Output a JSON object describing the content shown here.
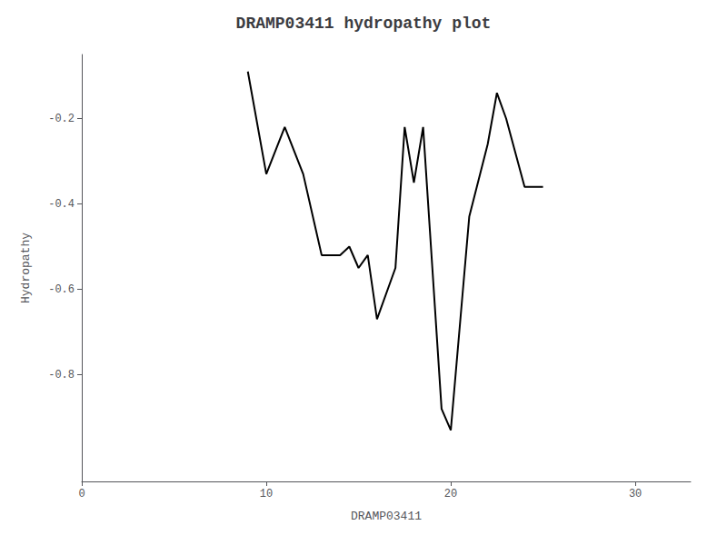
{
  "chart_data": {
    "type": "line",
    "title": "DRAMP03411 hydropathy plot",
    "xlabel": "DRAMP03411",
    "ylabel": "Hydropathy",
    "x": [
      9,
      10,
      11,
      12,
      13,
      14,
      14.5,
      15,
      15.5,
      16,
      17,
      17.5,
      18,
      18.5,
      19,
      19.5,
      20,
      21,
      22,
      22.5,
      23,
      24,
      25
    ],
    "values": [
      -0.09,
      -0.33,
      -0.22,
      -0.33,
      -0.52,
      -0.52,
      -0.5,
      -0.55,
      -0.52,
      -0.67,
      -0.55,
      -0.22,
      -0.35,
      -0.22,
      -0.55,
      -0.88,
      -0.93,
      -0.43,
      -0.26,
      -0.14,
      -0.2,
      -0.36,
      -0.36
    ],
    "color": "#000000",
    "xlim": [
      0,
      33
    ],
    "ylim": [
      -1.05,
      -0.05
    ],
    "xticks": [
      0,
      10,
      20,
      30
    ],
    "yticks": [
      -0.2,
      -0.4,
      -0.6,
      -0.8
    ],
    "grid": false
  }
}
